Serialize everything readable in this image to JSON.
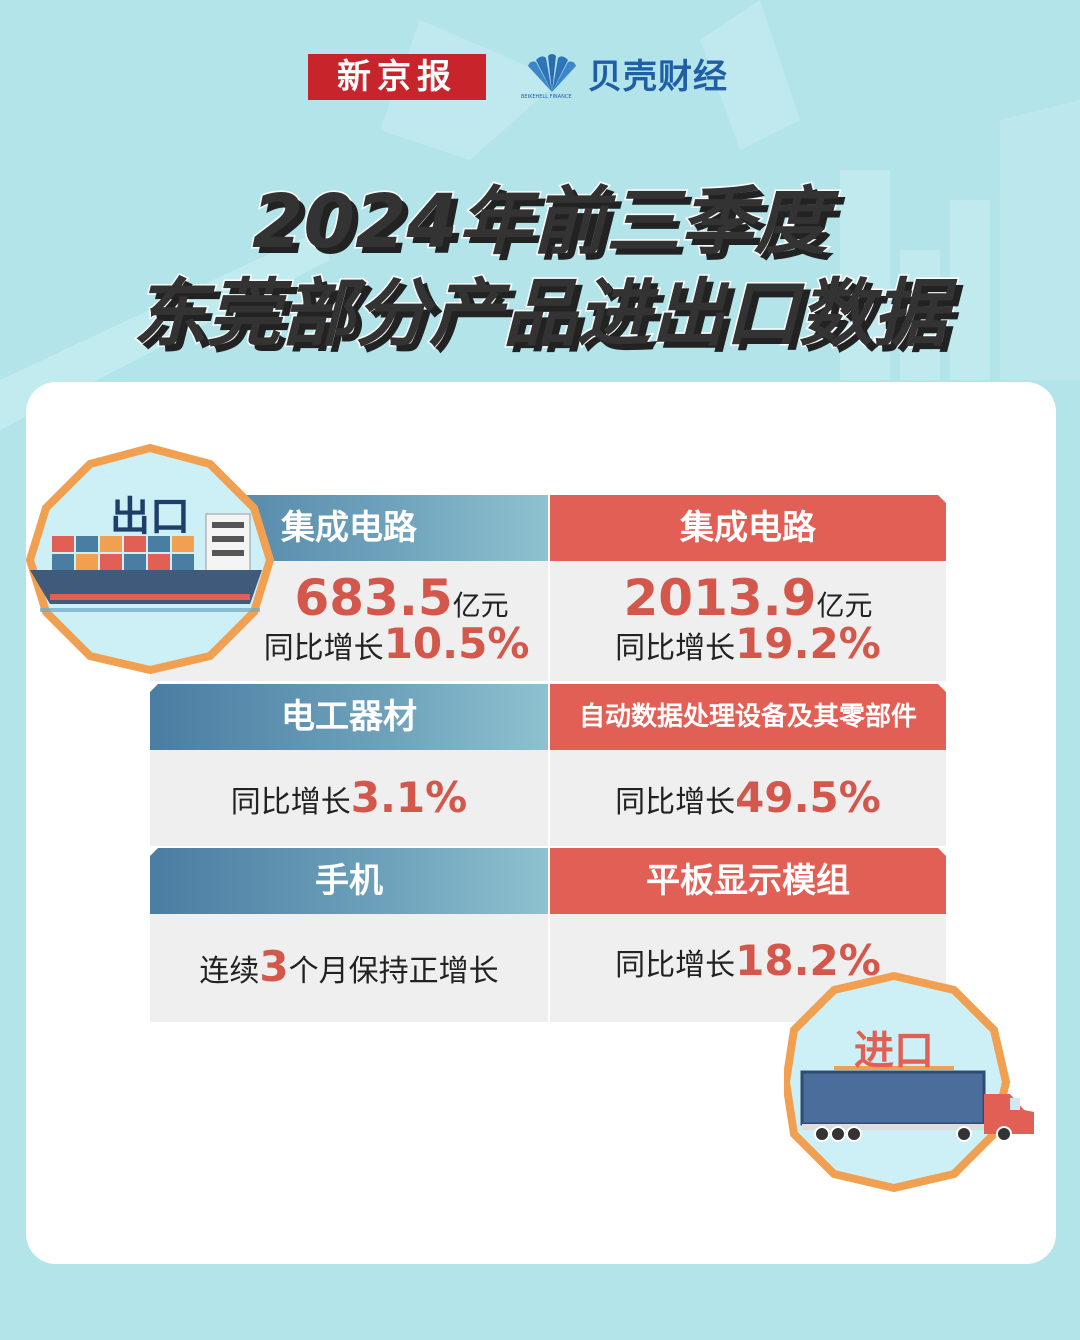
{
  "header": {
    "brand1": "新京报",
    "brand2": "贝壳财经",
    "brand2_sub": "BEIKEHELL FINANCE"
  },
  "title": {
    "line1": "2024年前三季度",
    "line2": "东莞部分产品进出口数据"
  },
  "badges": {
    "export": "出口",
    "import": "进口"
  },
  "export": [
    {
      "name": "集成电路",
      "value": "683.5",
      "unit": "亿元",
      "growth_prefix": "同比增长",
      "growth": "10.5%"
    },
    {
      "name": "电工器材",
      "growth_prefix": "同比增长",
      "growth": "3.1%"
    },
    {
      "name": "手机",
      "text_prefix": "连续",
      "highlight": "3",
      "text_suffix": "个月保持正增长"
    }
  ],
  "import": [
    {
      "name": "集成电路",
      "value": "2013.9",
      "unit": "亿元",
      "growth_prefix": "同比增长",
      "growth": "19.2%"
    },
    {
      "name": "自动数据处理设备及其零部件",
      "growth_prefix": "同比增长",
      "growth": "49.5%"
    },
    {
      "name": "平板显示模组",
      "growth_prefix": "同比增长",
      "growth": "18.2%"
    }
  ],
  "colors": {
    "background": "#b3e4ea",
    "export_accent": "#4a7da2",
    "import_accent": "#e25f55",
    "value_red": "#d4574c",
    "badge_ring": "#f0a050"
  },
  "icons": [
    "cargo-ship-icon",
    "truck-icon",
    "beike-shell-logo"
  ]
}
